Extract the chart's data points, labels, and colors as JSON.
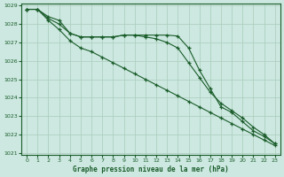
{
  "title": "Graphe pression niveau de la mer (hPa)",
  "bg_color": "#cce8e0",
  "grid_color": "#aaccbb",
  "line_color": "#1a5c2a",
  "x_ticks": [
    0,
    1,
    2,
    3,
    4,
    5,
    6,
    7,
    8,
    9,
    10,
    11,
    12,
    13,
    14,
    15,
    16,
    17,
    18,
    19,
    20,
    21,
    22,
    23
  ],
  "y_min": 1021,
  "y_max": 1029,
  "y_ticks": [
    1021,
    1022,
    1023,
    1024,
    1025,
    1026,
    1027,
    1028,
    1029
  ],
  "series1": [
    1028.8,
    1028.8,
    1028.4,
    1028.2,
    1027.5,
    1027.3,
    1027.3,
    1027.3,
    1027.3,
    1027.4,
    1027.4,
    1027.4,
    1027.4,
    1027.4,
    1027.35,
    1026.7,
    1025.5,
    1024.5,
    1023.5,
    1023.2,
    1022.7,
    1022.2,
    1021.9,
    1021.5
  ],
  "series2": [
    1028.8,
    1028.8,
    1028.2,
    1027.7,
    1027.1,
    1026.7,
    1026.5,
    1026.2,
    1025.9,
    1025.6,
    1025.3,
    1025.0,
    1024.7,
    1024.4,
    1024.1,
    1023.8,
    1023.5,
    1023.2,
    1022.9,
    1022.6,
    1022.3,
    1022.0,
    1021.7,
    1021.4
  ],
  "series3": [
    1028.8,
    1028.8,
    1028.3,
    1028.0,
    1027.5,
    1027.3,
    1027.3,
    1027.3,
    1027.3,
    1027.4,
    1027.4,
    1027.3,
    1027.2,
    1027.0,
    1026.7,
    1025.9,
    1025.1,
    1024.3,
    1023.7,
    1023.3,
    1022.9,
    1022.4,
    1022.0,
    1021.5
  ]
}
